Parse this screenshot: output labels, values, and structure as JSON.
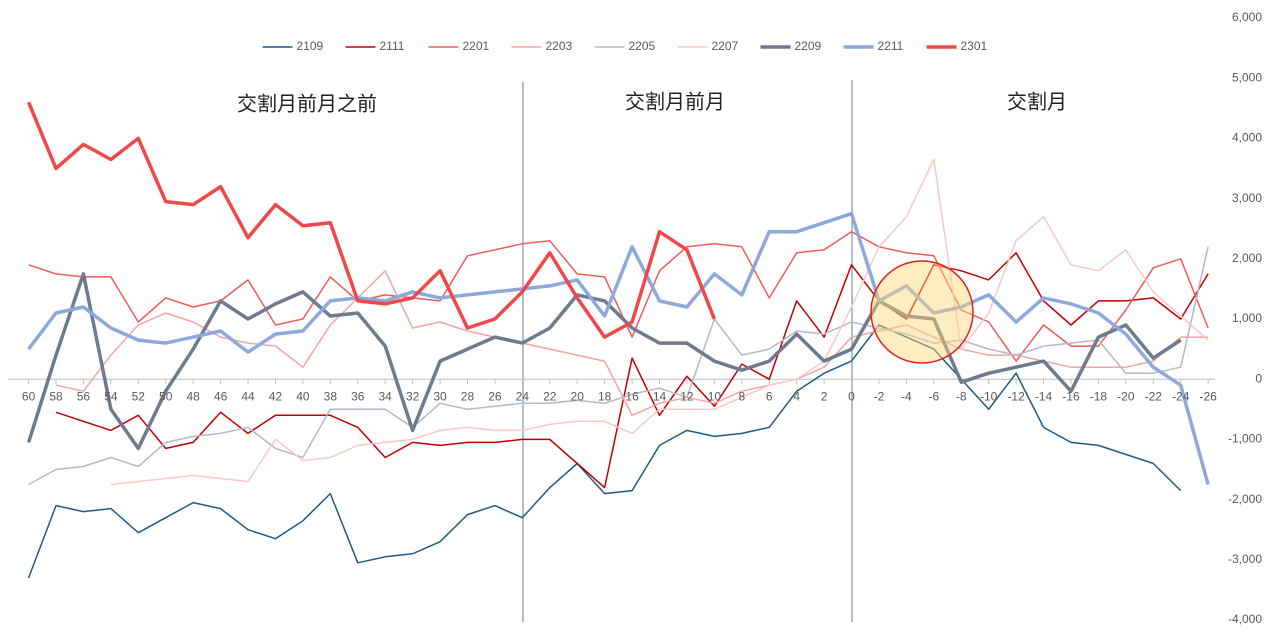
{
  "chart_data": {
    "type": "line",
    "annotations": [
      "交割月前月之前",
      "交割月前月",
      "交割月"
    ],
    "x": [
      60,
      58,
      56,
      54,
      52,
      50,
      48,
      46,
      44,
      42,
      40,
      38,
      36,
      34,
      32,
      30,
      28,
      26,
      24,
      22,
      20,
      18,
      16,
      14,
      12,
      10,
      8,
      6,
      4,
      2,
      0,
      -2,
      -4,
      -6,
      -8,
      -10,
      -12,
      -14,
      -16,
      -18,
      -20,
      -22,
      -24,
      -26
    ],
    "xlim": [
      61.5,
      -26.5
    ],
    "xticks": [
      60,
      58,
      56,
      54,
      52,
      50,
      48,
      46,
      44,
      42,
      40,
      38,
      36,
      34,
      32,
      30,
      28,
      26,
      24,
      22,
      20,
      18,
      16,
      14,
      12,
      10,
      8,
      6,
      4,
      2,
      0,
      -2,
      -4,
      -6,
      -8,
      -10,
      -12,
      -14,
      -16,
      -18,
      -20,
      -22,
      -24,
      -26
    ],
    "ylim": [
      -4000,
      6000
    ],
    "yticks": [
      {
        "value": -4000,
        "label": "-4,000"
      },
      {
        "value": -3000,
        "label": "-3,000"
      },
      {
        "value": -2000,
        "label": "-2,000"
      },
      {
        "value": -1000,
        "label": "-1,000"
      },
      0,
      {
        "value": 1000,
        "label": "1,000"
      },
      {
        "value": 2000,
        "label": "2,000"
      },
      {
        "value": 3000,
        "label": "3,000"
      },
      {
        "value": 4000,
        "label": "4,000"
      },
      {
        "value": 5000,
        "label": "5,000"
      },
      {
        "value": 6000,
        "label": "6,000"
      }
    ],
    "legend": "top",
    "series": [
      {
        "name": "2109",
        "color": "#1f5a85",
        "width": 1.5,
        "values": [
          -3300,
          -2100,
          -2200,
          -2150,
          -2550,
          -2300,
          -2050,
          -2150,
          -2500,
          -2650,
          -2350,
          -1900,
          -3050,
          -2950,
          -2900,
          -2700,
          -2250,
          -2100,
          -2300,
          -1800,
          -1400,
          -1900,
          -1850,
          -1100,
          -850,
          -950,
          -900,
          -800,
          -200,
          100,
          300,
          900,
          700,
          500,
          0,
          -500,
          100,
          -800,
          -1050,
          -1100,
          -1250,
          -1400,
          -1850,
          null
        ]
      },
      {
        "name": "2111",
        "color": "#c00000",
        "width": 1.5,
        "values": [
          null,
          -550,
          -700,
          -850,
          -600,
          -1150,
          -1050,
          -550,
          -900,
          -600,
          -600,
          -600,
          -800,
          -1300,
          -1050,
          -1100,
          -1050,
          -1050,
          -1000,
          -1000,
          -1400,
          -1800,
          350,
          -600,
          50,
          -450,
          250,
          0,
          1300,
          700,
          1900,
          1300,
          1000,
          1900,
          1800,
          1650,
          2100,
          1300,
          900,
          1300,
          1300,
          1350,
          1000,
          1750
        ]
      },
      {
        "name": "2201",
        "color": "#f05a5a",
        "width": 1.5,
        "values": [
          1900,
          1750,
          1700,
          1700,
          950,
          1350,
          1200,
          1300,
          1650,
          900,
          1000,
          1700,
          1300,
          1400,
          1350,
          1300,
          2050,
          2150,
          2250,
          2300,
          1750,
          1700,
          700,
          1800,
          2200,
          2250,
          2200,
          1350,
          2100,
          2150,
          2450,
          2200,
          2100,
          2050,
          1150,
          950,
          300,
          900,
          550,
          550,
          1150,
          1850,
          2000,
          850
        ]
      },
      {
        "name": "2203",
        "color": "#f4a4a4",
        "width": 1.5,
        "values": [
          null,
          -100,
          -200,
          400,
          900,
          1100,
          950,
          700,
          600,
          550,
          200,
          900,
          1350,
          1800,
          850,
          950,
          800,
          700,
          600,
          500,
          400,
          300,
          -600,
          -400,
          -300,
          -400,
          -200,
          -100,
          0,
          200,
          700,
          800,
          900,
          700,
          500,
          400,
          400,
          300,
          200,
          200,
          200,
          300,
          700,
          700
        ]
      },
      {
        "name": "2205",
        "color": "#b4b8c8",
        "width": 1.5,
        "values": [
          -1750,
          -1500,
          -1450,
          -1300,
          -1450,
          -1050,
          -950,
          -900,
          -800,
          -1150,
          -1300,
          -500,
          -500,
          -500,
          -800,
          -400,
          -500,
          -450,
          -400,
          -400,
          -350,
          -400,
          -250,
          -150,
          -300,
          1000,
          400,
          500,
          800,
          750,
          950,
          850,
          750,
          600,
          650,
          500,
          400,
          550,
          600,
          650,
          100,
          100,
          200,
          2200
        ]
      },
      {
        "name": "2207",
        "color": "#fac8c8",
        "width": 1.5,
        "values": [
          null,
          null,
          null,
          -1750,
          -1700,
          -1650,
          -1600,
          -1650,
          -1700,
          -1000,
          -1350,
          -1300,
          -1100,
          -1050,
          -1000,
          -850,
          -800,
          -850,
          -850,
          -750,
          -700,
          -700,
          -900,
          -500,
          -500,
          -500,
          -300,
          -100,
          0,
          300,
          1200,
          2200,
          2700,
          3650,
          500,
          1100,
          2300,
          2700,
          1900,
          1800,
          2150,
          1450,
          1050,
          650
        ]
      },
      {
        "name": "2209",
        "color": "#6e7a8e",
        "width": 3.5,
        "values": [
          -1050,
          400,
          1750,
          -500,
          -1150,
          -200,
          500,
          1300,
          1000,
          1250,
          1450,
          1050,
          1100,
          550,
          -850,
          300,
          500,
          700,
          600,
          850,
          1400,
          1300,
          850,
          600,
          600,
          300,
          150,
          300,
          750,
          300,
          500,
          1300,
          1050,
          1000,
          -50,
          100,
          200,
          300,
          -200,
          700,
          900,
          350,
          650,
          null
        ]
      },
      {
        "name": "2211",
        "color": "#8fa8dc",
        "width": 3.5,
        "values": [
          500,
          1100,
          1200,
          850,
          650,
          600,
          700,
          800,
          450,
          750,
          800,
          1300,
          1350,
          1300,
          1450,
          1350,
          1400,
          1450,
          1500,
          1550,
          1650,
          1050,
          2200,
          1300,
          1200,
          1750,
          1400,
          2450,
          2450,
          2600,
          2750,
          1300,
          1550,
          1100,
          1200,
          1400,
          950,
          1350,
          1250,
          1100,
          750,
          200,
          -100,
          -1750
        ]
      },
      {
        "name": "2301",
        "color": "#f04848",
        "width": 3.5,
        "values": [
          4600,
          3500,
          3900,
          3650,
          4000,
          2950,
          2900,
          3200,
          2350,
          2900,
          2550,
          2600,
          1300,
          1250,
          1350,
          1800,
          850,
          1000,
          1450,
          2100,
          1350,
          700,
          950,
          2450,
          2150,
          1000,
          null,
          null,
          null,
          null,
          null,
          null,
          null,
          null,
          null,
          null,
          null,
          null,
          null,
          null,
          null,
          null,
          null,
          null
        ]
      }
    ]
  }
}
